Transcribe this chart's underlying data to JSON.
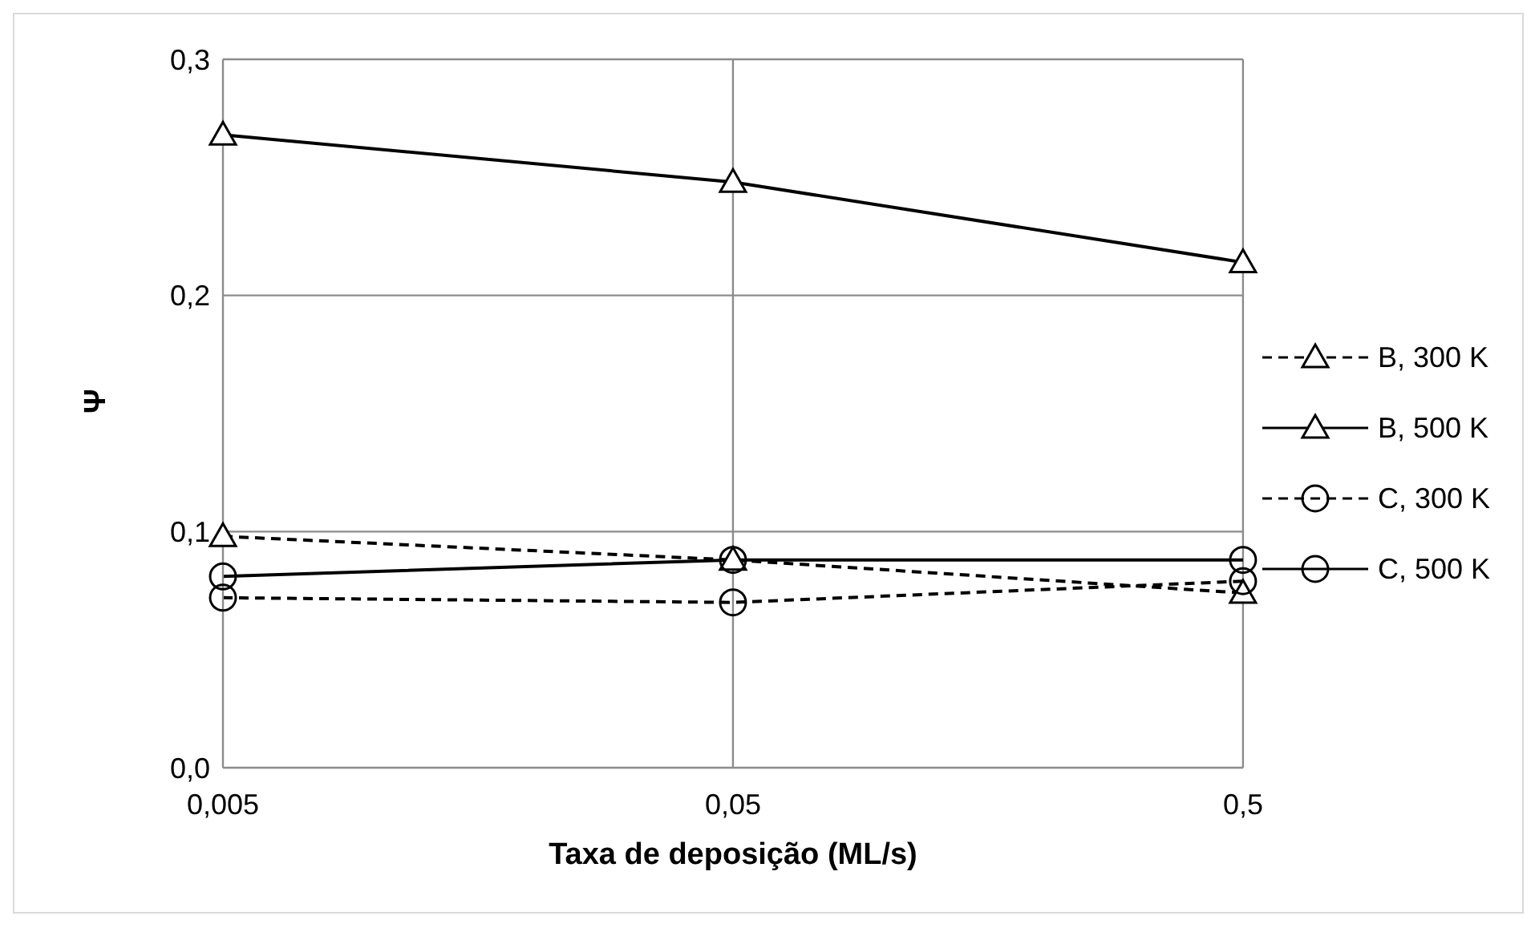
{
  "chart_data": {
    "type": "line",
    "xlabel": "Taxa de deposição (ML/s)",
    "ylabel": "Ψ",
    "categories": [
      "0,005",
      "0,05",
      "0,5"
    ],
    "ylim": [
      0,
      0.3
    ],
    "yticks": [
      {
        "value": 0,
        "label": "0,0"
      },
      {
        "value": 0.1,
        "label": "0,1"
      },
      {
        "value": 0.2,
        "label": "0,2"
      },
      {
        "value": 0.3,
        "label": "0,3"
      }
    ],
    "grid": true,
    "legend": "right",
    "series": [
      {
        "name": "B, 300 K",
        "color": "#000000",
        "marker": "triangle",
        "line_style": "dashed",
        "values": [
          0.098,
          0.088,
          0.074
        ]
      },
      {
        "name": "B, 500 K",
        "color": "#000000",
        "marker": "triangle",
        "line_style": "solid",
        "values": [
          0.268,
          0.248,
          0.214
        ]
      },
      {
        "name": "C, 300 K",
        "color": "#000000",
        "marker": "circle",
        "line_style": "dashed",
        "values": [
          0.072,
          0.07,
          0.079
        ]
      },
      {
        "name": "C, 500 K",
        "color": "#000000",
        "marker": "circle",
        "line_style": "solid",
        "values": [
          0.081,
          0.088,
          0.088
        ]
      }
    ]
  }
}
